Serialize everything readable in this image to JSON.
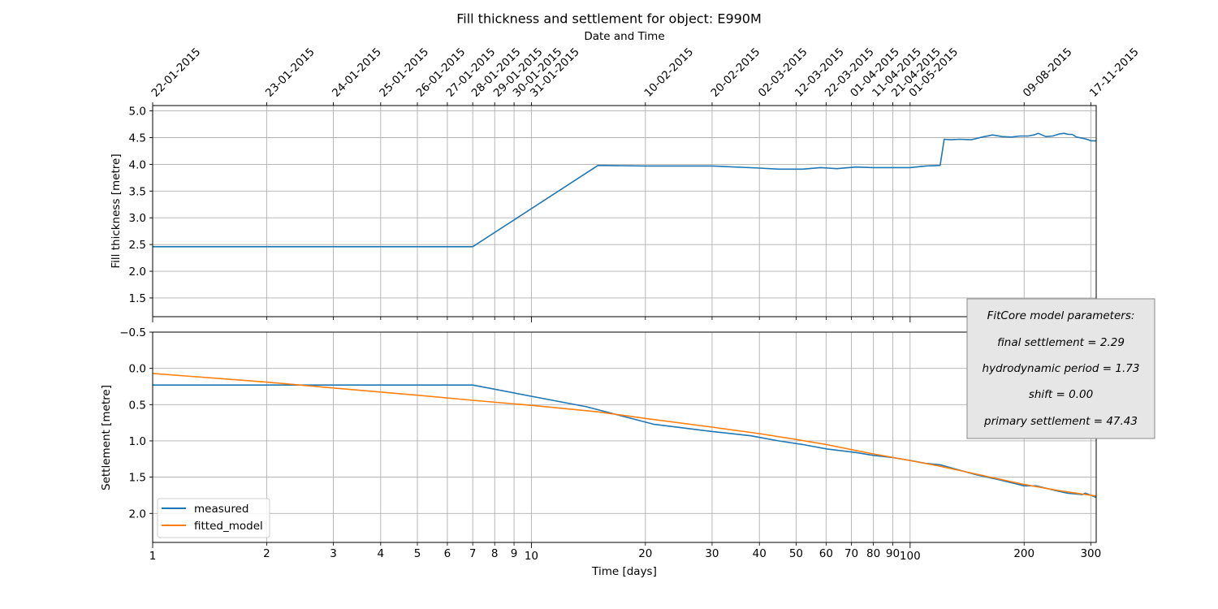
{
  "chart_data": {
    "type": "line",
    "title": "Fill thickness and settlement for object: E990M",
    "top_xlabel": "Date and Time",
    "xlabel": "Time [days]",
    "xscale": "log",
    "xlim": [
      1,
      310
    ],
    "x_ticks_major": [
      {
        "value": 1,
        "label": "1"
      },
      {
        "value": 10,
        "label": "10"
      },
      {
        "value": 100,
        "label": "100"
      }
    ],
    "x_ticks_minor": [
      {
        "value": 2,
        "label": "2"
      },
      {
        "value": 3,
        "label": "3"
      },
      {
        "value": 4,
        "label": "4"
      },
      {
        "value": 5,
        "label": "5"
      },
      {
        "value": 6,
        "label": "6"
      },
      {
        "value": 7,
        "label": "7"
      },
      {
        "value": 8,
        "label": "8"
      },
      {
        "value": 9,
        "label": "9"
      },
      {
        "value": 20,
        "label": "20"
      },
      {
        "value": 30,
        "label": "30"
      },
      {
        "value": 40,
        "label": "40"
      },
      {
        "value": 50,
        "label": "50"
      },
      {
        "value": 60,
        "label": "60"
      },
      {
        "value": 70,
        "label": "70"
      },
      {
        "value": 80,
        "label": "80"
      },
      {
        "value": 90,
        "label": "90"
      },
      {
        "value": 200,
        "label": "200"
      },
      {
        "value": 300,
        "label": "300"
      }
    ],
    "date_ticks": [
      {
        "day": 1,
        "label": "22-01-2015"
      },
      {
        "day": 2,
        "label": "23-01-2015"
      },
      {
        "day": 3,
        "label": "24-01-2015"
      },
      {
        "day": 4,
        "label": "25-01-2015"
      },
      {
        "day": 5,
        "label": "26-01-2015"
      },
      {
        "day": 6,
        "label": "27-01-2015"
      },
      {
        "day": 7,
        "label": "28-01-2015"
      },
      {
        "day": 8,
        "label": "29-01-2015"
      },
      {
        "day": 9,
        "label": "30-01-2015"
      },
      {
        "day": 10,
        "label": "31-01-2015"
      },
      {
        "day": 20,
        "label": "10-02-2015"
      },
      {
        "day": 30,
        "label": "20-02-2015"
      },
      {
        "day": 40,
        "label": "02-03-2015"
      },
      {
        "day": 50,
        "label": "12-03-2015"
      },
      {
        "day": 60,
        "label": "22-03-2015"
      },
      {
        "day": 70,
        "label": "01-04-2015"
      },
      {
        "day": 80,
        "label": "11-04-2015"
      },
      {
        "day": 90,
        "label": "21-04-2015"
      },
      {
        "day": 100,
        "label": "01-05-2015"
      },
      {
        "day": 200,
        "label": "09-08-2015"
      },
      {
        "day": 300,
        "label": "17-11-2015"
      }
    ],
    "panels": [
      {
        "name": "fill-thickness",
        "ylabel": "Fill thickness [metre]",
        "ylim": [
          1.15,
          5.1
        ],
        "inverted": false,
        "yticks": [
          {
            "value": 1.5,
            "label": "1.5"
          },
          {
            "value": 2.0,
            "label": "2.0"
          },
          {
            "value": 2.5,
            "label": "2.5"
          },
          {
            "value": 3.0,
            "label": "3.0"
          },
          {
            "value": 3.5,
            "label": "3.5"
          },
          {
            "value": 4.0,
            "label": "4.0"
          },
          {
            "value": 4.5,
            "label": "4.5"
          },
          {
            "value": 5.0,
            "label": "5.0"
          }
        ],
        "series": [
          {
            "name": "fill_thickness",
            "color": "#1f77b4",
            "points": [
              [
                1,
                2.46
              ],
              [
                7,
                2.46
              ],
              [
                15,
                3.98
              ],
              [
                20,
                3.97
              ],
              [
                30,
                3.97
              ],
              [
                40,
                3.93
              ],
              [
                45,
                3.91
              ],
              [
                52,
                3.91
              ],
              [
                58,
                3.94
              ],
              [
                64,
                3.92
              ],
              [
                72,
                3.95
              ],
              [
                80,
                3.94
              ],
              [
                100,
                3.94
              ],
              [
                110,
                3.97
              ],
              [
                120,
                3.98
              ],
              [
                123,
                4.47
              ],
              [
                128,
                4.46
              ],
              [
                135,
                4.47
              ],
              [
                145,
                4.46
              ],
              [
                155,
                4.51
              ],
              [
                165,
                4.55
              ],
              [
                175,
                4.52
              ],
              [
                185,
                4.51
              ],
              [
                195,
                4.53
              ],
              [
                205,
                4.53
              ],
              [
                212,
                4.55
              ],
              [
                218,
                4.58
              ],
              [
                228,
                4.52
              ],
              [
                238,
                4.53
              ],
              [
                248,
                4.57
              ],
              [
                255,
                4.58
              ],
              [
                262,
                4.56
              ],
              [
                268,
                4.56
              ],
              [
                275,
                4.51
              ],
              [
                285,
                4.49
              ],
              [
                293,
                4.47
              ],
              [
                300,
                4.44
              ],
              [
                310,
                4.44
              ]
            ]
          }
        ]
      },
      {
        "name": "settlement",
        "ylabel": "Settlement [metre]",
        "ylim": [
          -0.5,
          2.4
        ],
        "inverted": true,
        "yticks": [
          {
            "value": -0.5,
            "label": "−0.5"
          },
          {
            "value": 0.0,
            "label": "0.0"
          },
          {
            "value": 0.5,
            "label": "0.5"
          },
          {
            "value": 1.0,
            "label": "1.0"
          },
          {
            "value": 1.5,
            "label": "1.5"
          },
          {
            "value": 2.0,
            "label": "2.0"
          }
        ],
        "series": [
          {
            "name": "measured",
            "color": "#1f77b4",
            "points": [
              [
                1,
                0.23
              ],
              [
                7,
                0.23
              ],
              [
                14,
                0.53
              ],
              [
                21,
                0.77
              ],
              [
                30,
                0.87
              ],
              [
                38,
                0.93
              ],
              [
                45,
                1.0
              ],
              [
                52,
                1.05
              ],
              [
                60,
                1.11
              ],
              [
                72,
                1.16
              ],
              [
                80,
                1.2
              ],
              [
                90,
                1.23
              ],
              [
                100,
                1.27
              ],
              [
                110,
                1.31
              ],
              [
                120,
                1.33
              ],
              [
                130,
                1.38
              ],
              [
                150,
                1.47
              ],
              [
                170,
                1.53
              ],
              [
                190,
                1.59
              ],
              [
                200,
                1.62
              ],
              [
                215,
                1.62
              ],
              [
                240,
                1.68
              ],
              [
                260,
                1.72
              ],
              [
                285,
                1.74
              ],
              [
                290,
                1.72
              ],
              [
                300,
                1.75
              ],
              [
                310,
                1.78
              ]
            ]
          },
          {
            "name": "fitted_model",
            "color": "#ff7f0e",
            "points": [
              [
                1,
                0.07
              ],
              [
                2,
                0.19
              ],
              [
                3,
                0.27
              ],
              [
                5,
                0.37
              ],
              [
                7,
                0.44
              ],
              [
                10,
                0.51
              ],
              [
                15,
                0.6
              ],
              [
                20,
                0.69
              ],
              [
                30,
                0.81
              ],
              [
                40,
                0.9
              ],
              [
                50,
                0.98
              ],
              [
                60,
                1.05
              ],
              [
                70,
                1.12
              ],
              [
                80,
                1.18
              ],
              [
                100,
                1.27
              ],
              [
                120,
                1.35
              ],
              [
                150,
                1.46
              ],
              [
                200,
                1.6
              ],
              [
                250,
                1.69
              ],
              [
                300,
                1.75
              ],
              [
                310,
                1.76
              ]
            ]
          }
        ]
      }
    ],
    "legend": {
      "location": "lower-left",
      "entries": [
        {
          "label": "measured",
          "color": "#1f77b4"
        },
        {
          "label": "fitted_model",
          "color": "#ff7f0e"
        }
      ]
    },
    "annotation": {
      "title": "FitCore model parameters:",
      "lines": [
        "final settlement = 2.29",
        "hydrodynamic period = 1.73",
        "shift = 0.00",
        "primary settlement = 47.43"
      ]
    }
  }
}
